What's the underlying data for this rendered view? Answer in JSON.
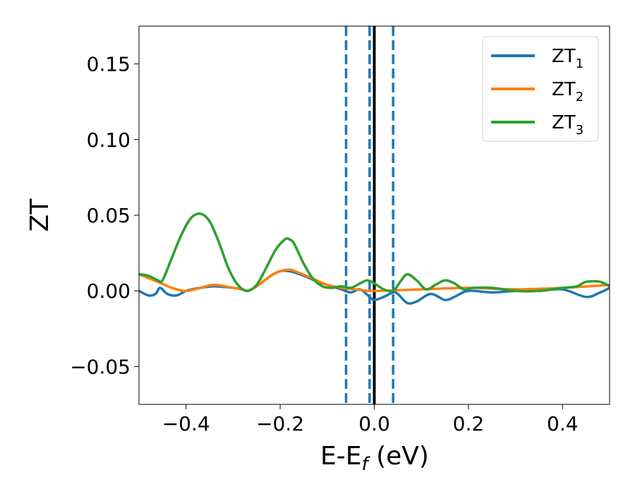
{
  "chart_data": {
    "type": "line",
    "xlabel": {
      "base": "E-E",
      "sub": "f",
      "suffix": " (eV)"
    },
    "ylabel": "ZT",
    "xlim": [
      -0.5,
      0.5
    ],
    "ylim": [
      -0.075,
      0.175
    ],
    "xticks": [
      -0.4,
      -0.2,
      0.0,
      0.2,
      0.4
    ],
    "xtick_labels": [
      "−0.4",
      "−0.2",
      "0.0",
      "0.2",
      "0.4"
    ],
    "yticks": [
      -0.05,
      0.0,
      0.05,
      0.1,
      0.15
    ],
    "ytick_labels": [
      "−0.05",
      "0.00",
      "0.05",
      "0.10",
      "0.15"
    ],
    "grid": false,
    "legend_position": "top-right",
    "vlines": [
      {
        "x": 0.0,
        "style": "solid",
        "color": "#000000"
      },
      {
        "x": -0.06,
        "style": "dashed",
        "color": "#1f77b4"
      },
      {
        "x": -0.01,
        "style": "dashed",
        "color": "#1f77b4"
      },
      {
        "x": 0.04,
        "style": "dashed",
        "color": "#1f77b4"
      }
    ],
    "series": [
      {
        "name": "ZT",
        "name_sub": "1",
        "color": "#1f77b4",
        "x": [
          -0.5,
          -0.48,
          -0.465,
          -0.455,
          -0.44,
          -0.42,
          -0.4,
          -0.37,
          -0.34,
          -0.3,
          -0.28,
          -0.27,
          -0.25,
          -0.22,
          -0.2,
          -0.18,
          -0.15,
          -0.12,
          -0.1,
          -0.07,
          -0.05,
          -0.03,
          -0.01,
          0.0,
          0.02,
          0.04,
          0.05,
          0.07,
          0.09,
          0.12,
          0.15,
          0.17,
          0.2,
          0.25,
          0.3,
          0.35,
          0.4,
          0.45,
          0.48,
          0.5
        ],
        "y": [
          0.0,
          -0.003,
          -0.002,
          0.002,
          -0.002,
          -0.003,
          0.0,
          0.002,
          0.003,
          0.002,
          0.001,
          0.0,
          0.003,
          0.01,
          0.013,
          0.013,
          0.01,
          0.006,
          0.004,
          0.001,
          -0.001,
          0.001,
          -0.004,
          -0.006,
          -0.004,
          -0.001,
          -0.002,
          -0.008,
          -0.007,
          -0.002,
          -0.006,
          -0.004,
          0.0,
          -0.001,
          0.0,
          0.0,
          0.001,
          -0.004,
          -0.001,
          0.002
        ]
      },
      {
        "name": "ZT",
        "name_sub": "2",
        "color": "#ff7f0e",
        "x": [
          -0.5,
          -0.46,
          -0.43,
          -0.4,
          -0.37,
          -0.34,
          -0.3,
          -0.28,
          -0.27,
          -0.25,
          -0.22,
          -0.2,
          -0.18,
          -0.16,
          -0.13,
          -0.1,
          -0.07,
          -0.04,
          0.0,
          0.1,
          0.2,
          0.3,
          0.4,
          0.5
        ],
        "y": [
          0.011,
          0.006,
          0.002,
          0.0,
          0.002,
          0.004,
          0.002,
          0.001,
          0.0,
          0.003,
          0.01,
          0.013,
          0.014,
          0.012,
          0.008,
          0.004,
          0.002,
          0.001,
          0.0,
          0.001,
          0.002,
          0.001,
          0.002,
          0.004
        ]
      },
      {
        "name": "ZT",
        "name_sub": "3",
        "color": "#2ca02c",
        "x": [
          -0.5,
          -0.48,
          -0.46,
          -0.45,
          -0.43,
          -0.41,
          -0.39,
          -0.37,
          -0.35,
          -0.33,
          -0.31,
          -0.29,
          -0.27,
          -0.25,
          -0.23,
          -0.21,
          -0.19,
          -0.18,
          -0.17,
          -0.15,
          -0.13,
          -0.11,
          -0.09,
          -0.07,
          -0.05,
          -0.03,
          -0.015,
          0.0,
          0.02,
          0.04,
          0.055,
          0.07,
          0.09,
          0.11,
          0.13,
          0.15,
          0.17,
          0.19,
          0.21,
          0.25,
          0.3,
          0.35,
          0.4,
          0.43,
          0.45,
          0.48,
          0.5
        ],
        "y": [
          0.011,
          0.01,
          0.007,
          0.007,
          0.022,
          0.037,
          0.048,
          0.051,
          0.046,
          0.032,
          0.015,
          0.004,
          0.0,
          0.004,
          0.015,
          0.027,
          0.034,
          0.034,
          0.031,
          0.018,
          0.008,
          0.003,
          0.002,
          0.003,
          0.002,
          0.005,
          0.007,
          0.005,
          0.001,
          0.0,
          0.006,
          0.011,
          0.007,
          0.001,
          0.004,
          0.007,
          0.005,
          0.001,
          0.002,
          0.002,
          0.0,
          0.0,
          0.002,
          0.003,
          0.006,
          0.006,
          0.003
        ]
      }
    ]
  }
}
